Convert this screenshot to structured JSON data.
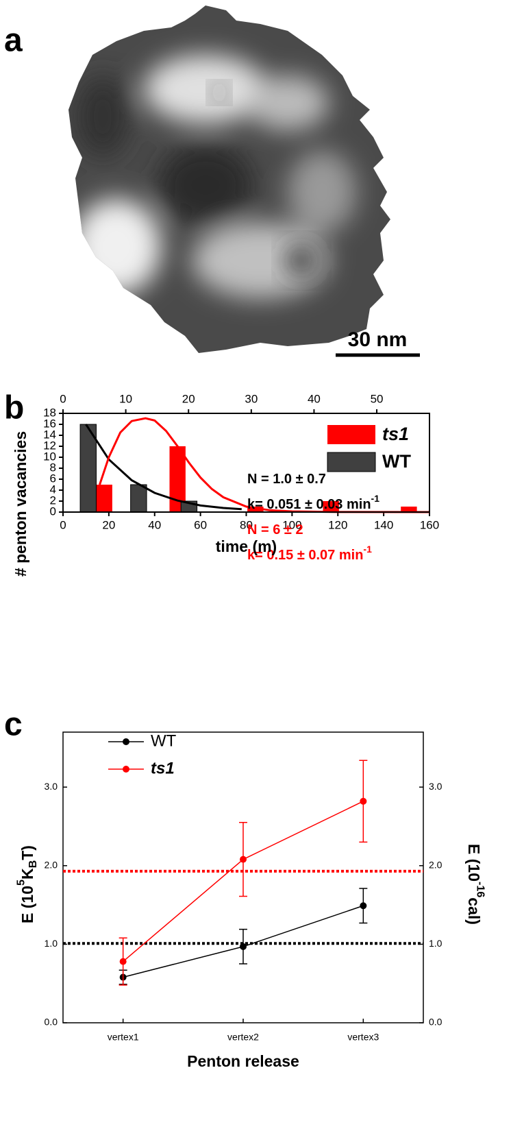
{
  "panel_a": {
    "label": "a",
    "scale_bar": "30 nm"
  },
  "chart_data": [
    {
      "type": "bar",
      "label": "b",
      "xlabel": "time (m)",
      "ylabel": "# penton vacancies",
      "xlim": [
        0,
        160
      ],
      "xticks": [
        0,
        20,
        40,
        60,
        80,
        100,
        120,
        140,
        160
      ],
      "x2lim": [
        0,
        58.4
      ],
      "x2ticks": [
        0,
        10,
        20,
        30,
        40,
        50
      ],
      "ylim": [
        0,
        18
      ],
      "yticks": [
        0,
        2,
        4,
        6,
        8,
        10,
        12,
        14,
        16,
        18
      ],
      "legend": "upper right",
      "series": [
        {
          "name": "ts1",
          "color": "#ff0000",
          "x": [
            18,
            50,
            84,
            117,
            151
          ],
          "values": [
            5,
            12,
            1,
            2,
            1
          ]
        },
        {
          "name": "WT",
          "color": "#404040",
          "x": [
            11,
            33,
            55
          ],
          "values": [
            16,
            5,
            2
          ]
        }
      ],
      "fits": [
        {
          "color": "#000000",
          "x": [
            10,
            20,
            30,
            40,
            50,
            60,
            70,
            78
          ],
          "values": [
            16,
            9.6,
            5.8,
            3.5,
            2.1,
            1.2,
            0.75,
            0.53
          ]
        },
        {
          "color": "#ff0000",
          "x": [
            16,
            20,
            25,
            30,
            36,
            40,
            45,
            50,
            55,
            60,
            65,
            70,
            80,
            90,
            100,
            120,
            160
          ],
          "values": [
            5,
            10,
            14.5,
            16.6,
            17.1,
            16.7,
            14.8,
            12,
            9,
            6.3,
            4.2,
            2.7,
            1,
            0.35,
            0.12,
            0.02,
            0
          ]
        }
      ],
      "annotations": [
        {
          "color": "#000000",
          "text": [
            {
              "text": "N = 1.0 ± 0.7"
            }
          ]
        },
        {
          "color": "#000000",
          "text": [
            {
              "text": "k= 0.051 ± 0.03 min"
            },
            {
              "text": "-1",
              "shift": "sup"
            }
          ]
        },
        {
          "color": "#ff0000",
          "text": [
            {
              "text": "N = 6 ± 2"
            }
          ]
        },
        {
          "color": "#ff0000",
          "text": [
            {
              "text": "k= 0.15 ± 0.07 min"
            },
            {
              "text": "-1",
              "shift": "sup"
            }
          ]
        }
      ]
    },
    {
      "type": "line",
      "label": "c",
      "categories": [
        "vertex1",
        "vertex2",
        "vertex3"
      ],
      "xlabel": "Penton release",
      "ylabel": [
        {
          "text": "E (10"
        },
        {
          "text": "5",
          "shift": "sup"
        },
        {
          "text": "K"
        },
        {
          "text": "B",
          "shift": "sub"
        },
        {
          "text": "T)"
        }
      ],
      "y2label": [
        {
          "text": "E (10"
        },
        {
          "text": "-16",
          "shift": "sup"
        },
        {
          "text": "cal)"
        }
      ],
      "ylim": [
        0,
        3.7
      ],
      "yticks": [
        {
          "value": 0,
          "label": "0.0"
        },
        {
          "value": 1,
          "label": "1.0"
        },
        {
          "value": 2,
          "label": "2.0"
        },
        {
          "value": 3,
          "label": "3.0"
        }
      ],
      "y2lim": [
        0,
        3.7
      ],
      "y2ticks": [
        {
          "value": 0,
          "label": "0.0"
        },
        {
          "value": 1,
          "label": "1.0"
        },
        {
          "value": 2,
          "label": "2.0"
        },
        {
          "value": 3,
          "label": "3.0"
        }
      ],
      "legend": "upper left",
      "series": [
        {
          "name": "WT",
          "color": "#000000",
          "values": [
            0.58,
            0.97,
            1.49
          ],
          "errors": [
            0.09,
            0.22,
            0.22
          ]
        },
        {
          "name": "ts1",
          "color": "#ff0000",
          "values": [
            0.78,
            2.08,
            2.82
          ],
          "errors": [
            0.3,
            0.47,
            0.52
          ]
        }
      ],
      "reference_lines": [
        {
          "value": 1.01,
          "color": "#000000"
        },
        {
          "value": 1.93,
          "color": "#ff0000"
        }
      ]
    }
  ]
}
